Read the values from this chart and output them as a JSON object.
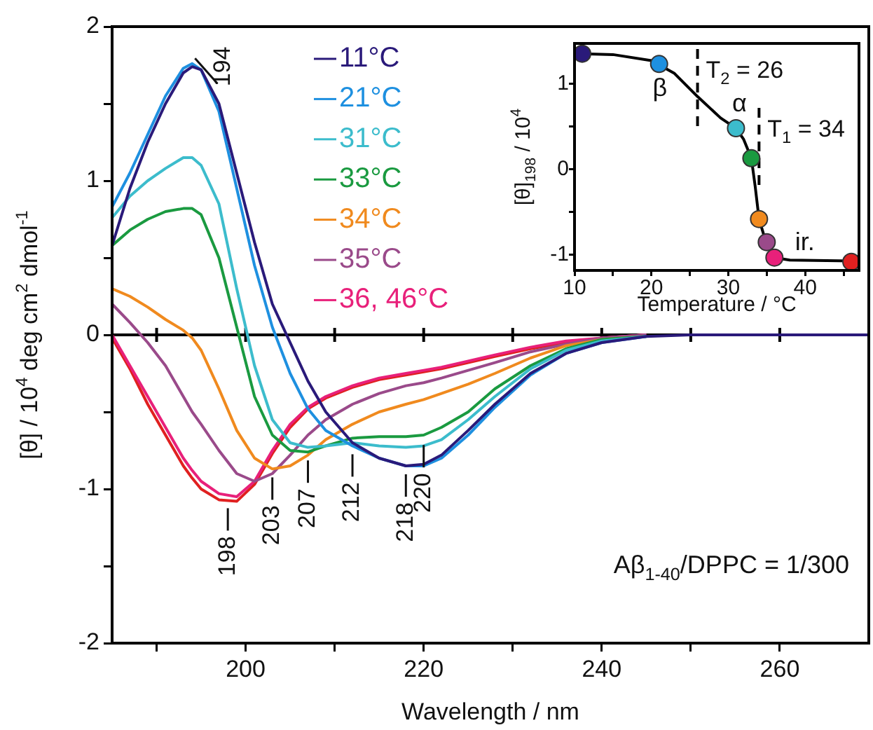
{
  "chart_data": [
    {
      "type": "line",
      "xlabel": "Wavelength / nm",
      "ylabel": "[θ] / 10$^{4}$ deg cm$^{2}$ dmol$^{-1}$",
      "x": [
        185,
        187,
        189,
        191,
        193,
        194,
        195,
        197,
        199,
        201,
        203,
        205,
        207,
        209,
        212,
        215,
        218,
        220,
        222,
        225,
        228,
        232,
        236,
        240,
        245,
        250,
        260,
        270
      ],
      "series": [
        {
          "name": "11°C",
          "color": "#2a1a7a",
          "values": [
            0.58,
            0.95,
            1.25,
            1.5,
            1.7,
            1.74,
            1.72,
            1.5,
            1.05,
            0.6,
            0.2,
            -0.05,
            -0.3,
            -0.5,
            -0.7,
            -0.8,
            -0.85,
            -0.84,
            -0.78,
            -0.62,
            -0.45,
            -0.25,
            -0.12,
            -0.05,
            -0.01,
            0,
            0,
            0
          ]
        },
        {
          "name": "21°C",
          "color": "#1e90e0",
          "values": [
            0.83,
            1.05,
            1.3,
            1.55,
            1.73,
            1.76,
            1.72,
            1.45,
            0.95,
            0.45,
            0.05,
            -0.25,
            -0.48,
            -0.62,
            -0.72,
            -0.8,
            -0.85,
            -0.85,
            -0.8,
            -0.65,
            -0.47,
            -0.26,
            -0.12,
            -0.05,
            -0.01,
            null,
            null,
            null
          ]
        },
        {
          "name": "31°C",
          "color": "#3cbccc",
          "values": [
            0.76,
            0.9,
            1.0,
            1.08,
            1.15,
            1.15,
            1.1,
            0.85,
            0.3,
            -0.2,
            -0.55,
            -0.7,
            -0.73,
            -0.72,
            -0.7,
            -0.72,
            -0.73,
            -0.72,
            -0.68,
            -0.55,
            -0.4,
            -0.22,
            -0.1,
            -0.04,
            -0.01,
            null,
            null,
            null
          ]
        },
        {
          "name": "33°C",
          "color": "#1a9a40",
          "values": [
            0.58,
            0.68,
            0.75,
            0.8,
            0.82,
            0.82,
            0.78,
            0.5,
            0.05,
            -0.4,
            -0.65,
            -0.75,
            -0.76,
            -0.72,
            -0.67,
            -0.66,
            -0.66,
            -0.65,
            -0.6,
            -0.5,
            -0.35,
            -0.2,
            -0.09,
            -0.03,
            -0.01,
            null,
            null,
            null
          ]
        },
        {
          "name": "34°C",
          "color": "#f08a1e",
          "values": [
            0.3,
            0.25,
            0.18,
            0.1,
            0.03,
            -0.02,
            -0.1,
            -0.35,
            -0.62,
            -0.8,
            -0.87,
            -0.85,
            -0.78,
            -0.68,
            -0.58,
            -0.5,
            -0.45,
            -0.42,
            -0.38,
            -0.32,
            -0.25,
            -0.15,
            -0.07,
            -0.03,
            -0.01,
            null,
            null,
            null
          ]
        },
        {
          "name": "35°C",
          "color": "#9a4a8a",
          "values": [
            0.2,
            0.08,
            -0.05,
            -0.2,
            -0.4,
            -0.5,
            -0.58,
            -0.75,
            -0.9,
            -0.95,
            -0.9,
            -0.78,
            -0.65,
            -0.55,
            -0.45,
            -0.38,
            -0.33,
            -0.31,
            -0.28,
            -0.23,
            -0.18,
            -0.11,
            -0.06,
            -0.02,
            0,
            null,
            null,
            null
          ]
        },
        {
          "name": "36, 46°C",
          "color": "#e8207a",
          "values": [
            0,
            -0.2,
            -0.4,
            -0.6,
            -0.8,
            -0.88,
            -0.95,
            -1.03,
            -1.05,
            -0.95,
            -0.75,
            -0.58,
            -0.47,
            -0.4,
            -0.33,
            -0.28,
            -0.25,
            -0.23,
            -0.21,
            -0.17,
            -0.13,
            -0.08,
            -0.04,
            -0.02,
            0,
            null,
            null,
            null
          ]
        },
        {
          "color": "#e02020",
          "values": [
            -0.02,
            -0.22,
            -0.45,
            -0.65,
            -0.85,
            -0.93,
            -1.0,
            -1.07,
            -1.08,
            -0.97,
            -0.77,
            -0.6,
            -0.48,
            -0.41,
            -0.34,
            -0.29,
            -0.26,
            -0.24,
            -0.22,
            -0.18,
            -0.14,
            -0.09,
            -0.05,
            -0.02,
            0,
            null,
            null,
            null
          ]
        }
      ],
      "xlim": [
        185,
        270
      ],
      "xticks": [
        {
          "value": 190,
          "label": null
        },
        200,
        {
          "value": 210,
          "label": null
        },
        220,
        {
          "value": 230,
          "label": null
        },
        240,
        {
          "value": 250,
          "label": null
        },
        260
      ],
      "ylim": [
        -2,
        2
      ],
      "yticks": [
        -2,
        {
          "value": -1.5,
          "label": null
        },
        -1,
        {
          "value": -0.5,
          "label": null
        },
        0,
        {
          "value": 0.5,
          "label": null
        },
        1,
        {
          "value": 1.5,
          "label": null
        },
        2
      ],
      "ref_lines": [
        {
          "axis": "y",
          "value": 0,
          "color": "#000000"
        }
      ],
      "annotations": [
        {
          "text": "194",
          "x": 194,
          "y": 1.74
        },
        {
          "text": "198",
          "x": 198,
          "y": -1.07
        },
        {
          "text": "203",
          "x": 203,
          "y": -0.87
        },
        {
          "text": "207",
          "x": 207,
          "y": -0.76
        },
        {
          "text": "212",
          "x": 212,
          "y": -0.72
        },
        {
          "text": "218",
          "x": 218,
          "y": -0.85
        },
        {
          "text": "220",
          "x": 220,
          "y": -0.66
        },
        "Aβ$_{1-40}$/DPPC = 1/300"
      ],
      "marker": "none",
      "grid": false,
      "legend": "top"
    },
    {
      "type": "scatter",
      "xlabel": "Temperature / °C",
      "ylabel": "[θ]$_{198}$ / 10$^{4}$",
      "series": [
        {
          "type": "line",
          "color": "#000000",
          "marker": "none",
          "x": [
            11,
            15,
            20,
            23,
            26,
            29,
            31,
            32,
            33,
            33.5,
            34,
            35,
            36,
            38,
            46
          ],
          "values": [
            1.35,
            1.34,
            1.27,
            1.12,
            0.85,
            0.6,
            0.48,
            0.35,
            0.13,
            -0.2,
            -0.58,
            -0.88,
            -1.03,
            -1.06,
            -1.07
          ]
        },
        {
          "x": [
            11,
            21,
            31,
            33,
            34,
            35,
            36,
            46
          ],
          "values": [
            1.35,
            1.23,
            0.48,
            0.13,
            -0.58,
            -0.85,
            -1.03,
            -1.08
          ],
          "colors": [
            "#2a1a7a",
            "#1e90e0",
            "#3cbccc",
            "#1a9a40",
            "#f08a1e",
            "#9a4a8a",
            "#e8207a",
            "#e02020"
          ]
        }
      ],
      "xlim": [
        10,
        47
      ],
      "xticks": [
        10,
        {
          "value": 15,
          "label": null
        },
        20,
        {
          "value": 25,
          "label": null
        },
        30,
        {
          "value": 35,
          "label": null
        },
        40,
        {
          "value": 45,
          "label": null
        }
      ],
      "ylim": [
        -1.18,
        1.47
      ],
      "yticks": [
        -1,
        {
          "value": -0.5,
          "label": null
        },
        0,
        {
          "value": 0.5,
          "label": null
        },
        1
      ],
      "ref_lines": [
        {
          "axis": "x",
          "value": 26,
          "label": "T$_{2}$ = 26",
          "line_style": "dashed"
        },
        {
          "axis": "x",
          "value": 34,
          "label": "T$_{1}$ = 34",
          "line_style": "dashed"
        }
      ],
      "annotations": [
        "β",
        "α",
        "ir."
      ],
      "marker": "circle",
      "grid": false,
      "legend": false
    }
  ]
}
